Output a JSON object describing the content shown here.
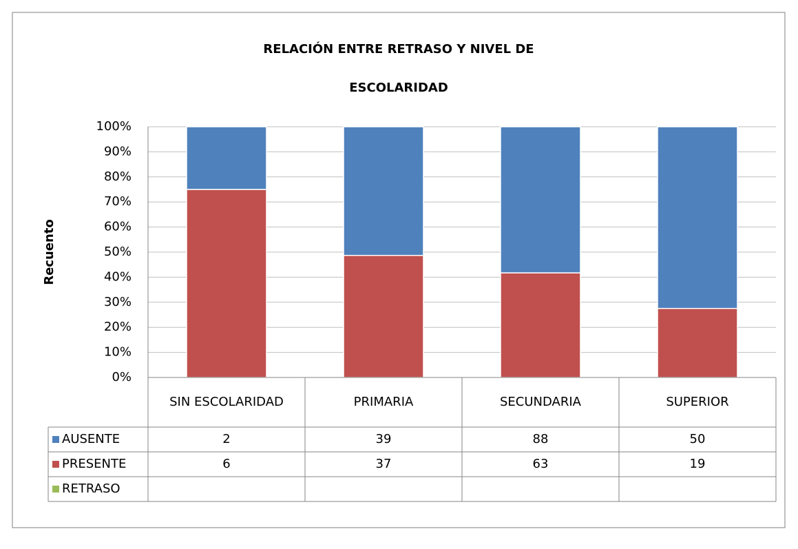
{
  "chart_data": {
    "type": "stacked_bar_100",
    "title": "RELACIÓN ENTRE RETRASO Y NIVEL DE ESCOLARIDAD",
    "y_label": "Recuento",
    "categories": [
      "SIN ESCOLARIDAD",
      "PRIMARIA",
      "SECUNDARIA",
      "SUPERIOR"
    ],
    "series": [
      {
        "name": "AUSENTE",
        "color": "#4f81bd",
        "values": [
          2,
          39,
          88,
          50
        ]
      },
      {
        "name": "PRESENTE",
        "color": "#c0504d",
        "values": [
          6,
          37,
          63,
          19
        ]
      },
      {
        "name": "RETRASO",
        "color": "#9bbb59",
        "values": [
          null,
          null,
          null,
          null
        ]
      }
    ],
    "ylim": [
      0,
      100
    ],
    "yticks": [
      {
        "value": 0,
        "label": "0%"
      },
      {
        "value": 10,
        "label": "10%"
      },
      {
        "value": 20,
        "label": "20%"
      },
      {
        "value": 30,
        "label": "30%"
      },
      {
        "value": 40,
        "label": "40%"
      },
      {
        "value": 50,
        "label": "50%"
      },
      {
        "value": 60,
        "label": "60%"
      },
      {
        "value": 70,
        "label": "70%"
      },
      {
        "value": 80,
        "label": "80%"
      },
      {
        "value": 90,
        "label": "90%"
      },
      {
        "value": 100,
        "label": "100%"
      }
    ],
    "grid": true
  }
}
